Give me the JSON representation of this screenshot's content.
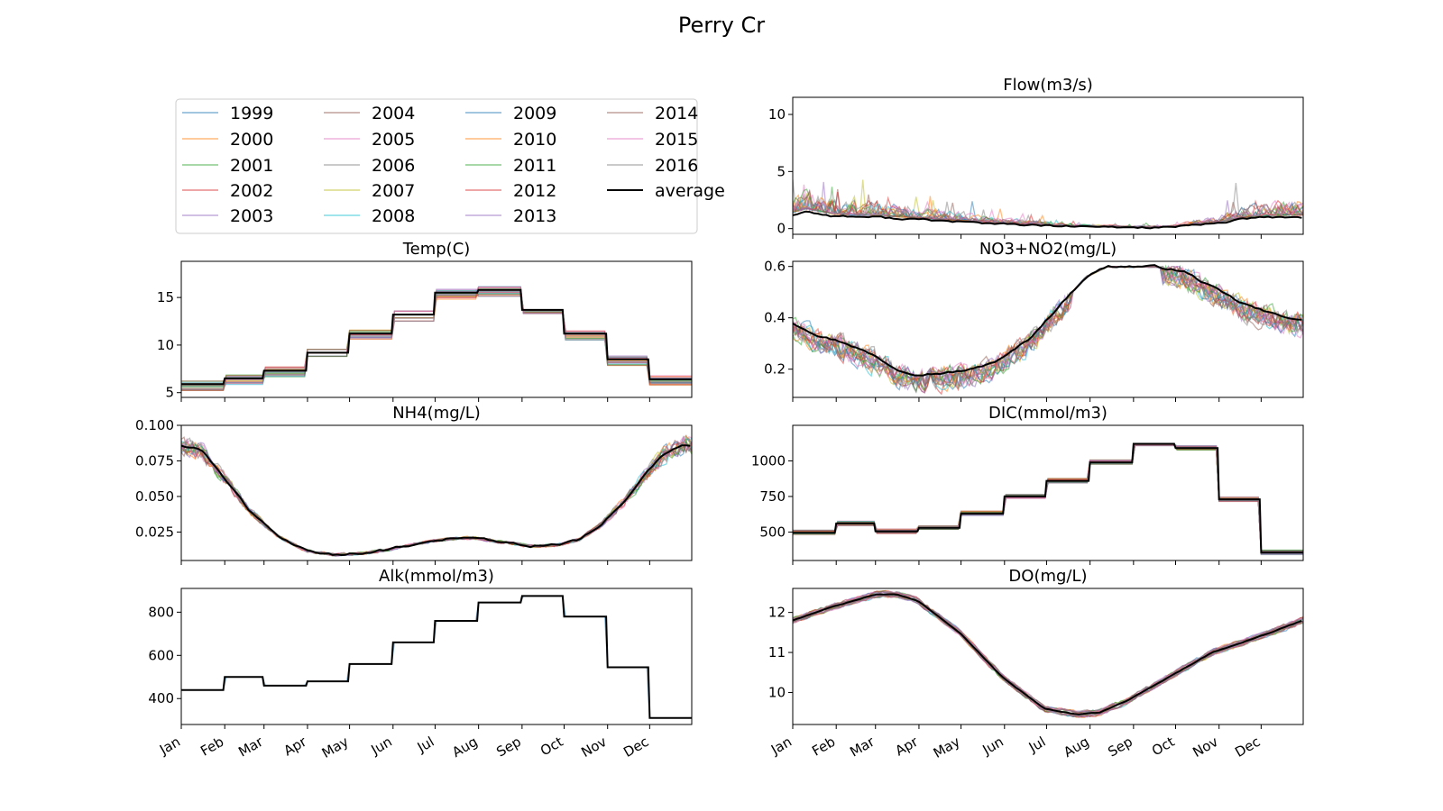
{
  "figure": {
    "title": "Perry Cr"
  },
  "legend": {
    "entries": [
      {
        "label": "1999",
        "color": "#1f77b4"
      },
      {
        "label": "2000",
        "color": "#ff7f0e"
      },
      {
        "label": "2001",
        "color": "#2ca02c"
      },
      {
        "label": "2002",
        "color": "#d62728"
      },
      {
        "label": "2003",
        "color": "#9467bd"
      },
      {
        "label": "2004",
        "color": "#8c564b"
      },
      {
        "label": "2005",
        "color": "#e377c2"
      },
      {
        "label": "2006",
        "color": "#7f7f7f"
      },
      {
        "label": "2007",
        "color": "#bcbd22"
      },
      {
        "label": "2008",
        "color": "#17becf"
      },
      {
        "label": "2009",
        "color": "#1f77b4"
      },
      {
        "label": "2010",
        "color": "#ff7f0e"
      },
      {
        "label": "2011",
        "color": "#2ca02c"
      },
      {
        "label": "2012",
        "color": "#d62728"
      },
      {
        "label": "2013",
        "color": "#9467bd"
      },
      {
        "label": "2014",
        "color": "#8c564b"
      },
      {
        "label": "2015",
        "color": "#e377c2"
      },
      {
        "label": "2016",
        "color": "#7f7f7f"
      },
      {
        "label": "average",
        "color": "#000000"
      }
    ],
    "columns": 4,
    "placement": "upper-left panel slot"
  },
  "chart_data": [
    {
      "id": "flow",
      "type": "line",
      "title": "Flow(m3/s)",
      "x": "day of year 1-365",
      "ylim": [
        -0.5,
        11.5
      ],
      "yticks": [
        0,
        5,
        10
      ],
      "tick_labels": [
        "0",
        "5",
        "10"
      ],
      "xtick_labels_shown": false,
      "average_profile": {
        "x": [
          1,
          10,
          30,
          60,
          90,
          120,
          150,
          180,
          210,
          240,
          270,
          290,
          305,
          320,
          340,
          365
        ],
        "y": [
          1.2,
          1.5,
          1.1,
          1.0,
          0.8,
          0.6,
          0.4,
          0.25,
          0.15,
          0.1,
          0.12,
          0.3,
          0.5,
          0.8,
          1.0,
          1.0
        ]
      },
      "year_spread": 1.0
    },
    {
      "id": "temp",
      "type": "line",
      "title": "Temp(C)",
      "x": "day of year 1-365",
      "ylim": [
        4.5,
        18.8
      ],
      "yticks": [
        5,
        10,
        15
      ],
      "tick_labels": [
        "5",
        "10",
        "15"
      ],
      "xtick_labels_shown": false,
      "step": "monthly",
      "average_profile": {
        "monthly": [
          5.9,
          6.5,
          7.3,
          9.2,
          11.2,
          13.2,
          15.5,
          15.8,
          13.7,
          11.2,
          8.5,
          6.4
        ]
      },
      "year_spread": 0.9
    },
    {
      "id": "nh4",
      "type": "line",
      "title": "NH4(mg/L)",
      "x": "day of year 1-365",
      "ylim": [
        0.005,
        0.1
      ],
      "yticks": [
        0.025,
        0.05,
        0.075,
        0.1
      ],
      "tick_labels": [
        "0.025",
        "0.050",
        "0.075",
        "0.100"
      ],
      "xtick_labels_shown": false,
      "average_profile": {
        "x": [
          1,
          15,
          30,
          50,
          70,
          90,
          110,
          130,
          150,
          170,
          190,
          210,
          230,
          250,
          270,
          285,
          300,
          315,
          330,
          345,
          360,
          365
        ],
        "y": [
          0.086,
          0.083,
          0.065,
          0.04,
          0.022,
          0.012,
          0.009,
          0.01,
          0.013,
          0.017,
          0.02,
          0.021,
          0.018,
          0.015,
          0.016,
          0.02,
          0.03,
          0.045,
          0.063,
          0.08,
          0.087,
          0.085
        ]
      },
      "year_spread": 0.009
    },
    {
      "id": "alk",
      "type": "line",
      "title": "Alk(mmol/m3)",
      "x": "day of year 1-365",
      "ylim": [
        280,
        910
      ],
      "yticks": [
        400,
        600,
        800
      ],
      "tick_labels": [
        "400",
        "600",
        "800"
      ],
      "xtick_labels_shown": true,
      "step": "monthly",
      "average_profile": {
        "monthly": [
          440,
          500,
          460,
          480,
          560,
          660,
          760,
          845,
          875,
          780,
          545,
          310
        ]
      },
      "year_spread": 0
    },
    {
      "id": "no3",
      "type": "line",
      "title": "NO3+NO2(mg/L)",
      "x": "day of year 1-365",
      "ylim": [
        0.09,
        0.62
      ],
      "yticks": [
        0.2,
        0.4,
        0.6
      ],
      "tick_labels": [
        "0.2",
        "0.4",
        "0.6"
      ],
      "xtick_labels_shown": false,
      "average_profile": {
        "x": [
          1,
          20,
          40,
          60,
          75,
          90,
          110,
          130,
          150,
          170,
          190,
          210,
          225,
          240,
          260,
          280,
          300,
          320,
          340,
          365
        ],
        "y": [
          0.38,
          0.33,
          0.3,
          0.25,
          0.2,
          0.18,
          0.185,
          0.2,
          0.24,
          0.32,
          0.44,
          0.56,
          0.6,
          0.6,
          0.6,
          0.58,
          0.52,
          0.46,
          0.42,
          0.39
        ]
      },
      "year_spread": 0.05
    },
    {
      "id": "dic",
      "type": "line",
      "title": "DIC(mmol/m3)",
      "x": "day of year 1-365",
      "ylim": [
        300,
        1250
      ],
      "yticks": [
        500,
        750,
        1000
      ],
      "tick_labels": [
        "500",
        "750",
        "1000"
      ],
      "xtick_labels_shown": false,
      "step": "monthly",
      "average_profile": {
        "monthly": [
          495,
          560,
          505,
          530,
          630,
          750,
          860,
          990,
          1120,
          1090,
          730,
          355
        ]
      },
      "year_spread": 28
    },
    {
      "id": "do",
      "type": "line",
      "title": "DO(mg/L)",
      "x": "day of year 1-365",
      "ylim": [
        9.2,
        12.6
      ],
      "yticks": [
        10,
        11,
        12
      ],
      "tick_labels": [
        "10",
        "11",
        "12"
      ],
      "xtick_labels_shown": true,
      "average_profile": {
        "x": [
          1,
          30,
          60,
          75,
          90,
          120,
          150,
          180,
          205,
          220,
          240,
          270,
          300,
          330,
          365
        ],
        "y": [
          11.8,
          12.15,
          12.45,
          12.45,
          12.3,
          11.5,
          10.4,
          9.6,
          9.45,
          9.5,
          9.8,
          10.4,
          11.0,
          11.35,
          11.8
        ]
      },
      "year_spread": 0.08
    }
  ],
  "x_axis": {
    "month_labels": [
      "Jan",
      "Feb",
      "Mar",
      "Apr",
      "May",
      "Jun",
      "Jul",
      "Aug",
      "Sep",
      "Oct",
      "Nov",
      "Dec"
    ],
    "month_start_days": [
      1,
      32,
      60,
      91,
      121,
      152,
      182,
      213,
      244,
      274,
      305,
      335
    ],
    "xlim": [
      1,
      365
    ]
  }
}
